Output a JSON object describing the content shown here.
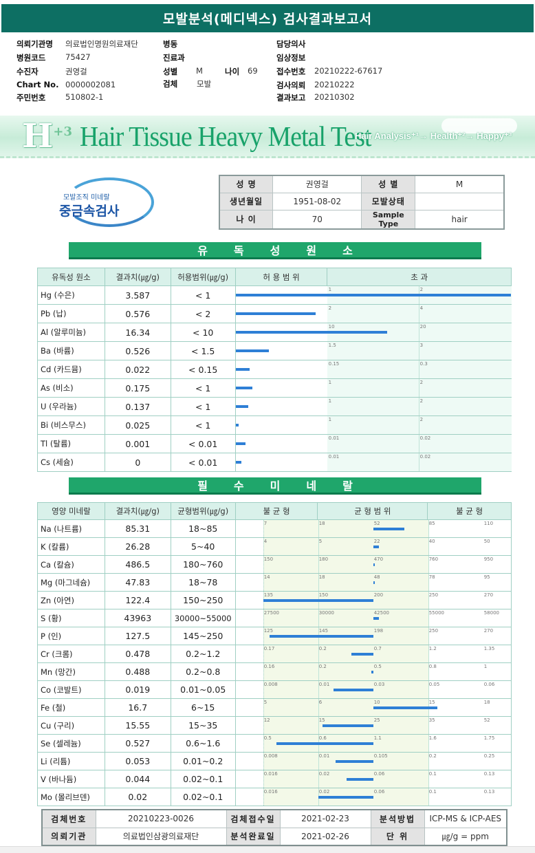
{
  "title": "모발분석(메디넥스) 검사결과보고서",
  "info": [
    {
      "label": "의뢰기관명",
      "value": "의료법인명원의료재단"
    },
    {
      "label": "병원코드",
      "value": "75427"
    },
    {
      "label": "수진자",
      "value": "권영걸"
    },
    {
      "label": "Chart No.",
      "value": "0000002081"
    },
    {
      "label": "주민번호",
      "value": "510802-1"
    },
    {
      "label": "병동",
      "value": ""
    },
    {
      "label": "진료과",
      "value": ""
    },
    {
      "label": "성별",
      "value": "M"
    },
    {
      "label": "나이",
      "value": "69"
    },
    {
      "label": "검체",
      "value": "모발"
    },
    {
      "label": "담당의사",
      "value": ""
    },
    {
      "label": "임상정보",
      "value": ""
    },
    {
      "label": "접수번호",
      "value": "20210222-67617"
    },
    {
      "label": "검사의뢰",
      "value": "20210222"
    },
    {
      "label": "결과보고",
      "value": "20210302"
    }
  ],
  "banner": {
    "logo": "H",
    "logo_sup": "+3",
    "title": "Hair Tissue Heavy Metal Test",
    "tagline": "Hair Analysis⁺¹→ Health⁺²→ Happy⁺³"
  },
  "logo": {
    "sub": "모발조직 미네랄",
    "main": "중금속검사"
  },
  "patient": {
    "labels": [
      "성  명",
      "성  별",
      "생년월일",
      "모발상태",
      "나  이",
      "Sample Type"
    ],
    "values": [
      "권영걸",
      "M",
      "1951-08-02",
      "",
      "70",
      "hair"
    ]
  },
  "toxic": {
    "section_title": "유독성원소",
    "headers": [
      "유독성 원소",
      "결과치(㎍/g)",
      "허용범위(㎍/g)",
      "허 용 범 위",
      "초 과"
    ],
    "rows": [
      {
        "name": "Hg (수은)",
        "result": "3.587",
        "range": "< 1",
        "t1": "1",
        "t2": "2",
        "fill": 1.0
      },
      {
        "name": "Pb (납)",
        "result": "0.576",
        "range": "< 2",
        "t1": "2",
        "t2": "4",
        "fill": 0.29
      },
      {
        "name": "Al (알루미늄)",
        "result": "16.34",
        "range": "< 10",
        "t1": "10",
        "t2": "20",
        "fill": 0.55
      },
      {
        "name": "Ba (바륨)",
        "result": "0.526",
        "range": "< 1.5",
        "t1": "1.5",
        "t2": "3",
        "fill": 0.12
      },
      {
        "name": "Cd (카드뮴)",
        "result": "0.022",
        "range": "< 0.15",
        "t1": "0.15",
        "t2": "0.3",
        "fill": 0.05
      },
      {
        "name": "As (비소)",
        "result": "0.175",
        "range": "< 1",
        "t1": "1",
        "t2": "2",
        "fill": 0.06
      },
      {
        "name": "U (우라늄)",
        "result": "0.137",
        "range": "< 1",
        "t1": "1",
        "t2": "2",
        "fill": 0.045
      },
      {
        "name": "Bi (비스무스)",
        "result": "0.025",
        "range": "< 1",
        "t1": "1",
        "t2": "2",
        "fill": 0.01
      },
      {
        "name": "Tl (탈륨)",
        "result": "0.001",
        "range": "< 0.01",
        "t1": "0.01",
        "t2": "0.02",
        "fill": 0.035
      },
      {
        "name": "Cs (세슘)",
        "result": "0",
        "range": "< 0.01",
        "t1": "0.01",
        "t2": "0.02",
        "fill": 0.02
      }
    ]
  },
  "minerals": {
    "section_title": "필수미네랄",
    "headers": [
      "영양 미네랄",
      "결과치(㎍/g)",
      "균형범위(㎍/g)",
      "불 균 형",
      "균 형 범 위",
      "불 균 형"
    ],
    "rows": [
      {
        "name": "Na (나트륨)",
        "result": "85.31",
        "range": "18~85",
        "ticks": [
          "7",
          "18",
          "52",
          "85",
          "110"
        ],
        "center": 0.5,
        "bar": 0.64
      },
      {
        "name": "K (칼륨)",
        "result": "26.28",
        "range": "5~40",
        "ticks": [
          "4",
          "5",
          "22",
          "40",
          "50"
        ],
        "center": 0.5,
        "bar": 0.525
      },
      {
        "name": "Ca (칼슘)",
        "result": "486.5",
        "range": "180~760",
        "ticks": [
          "150",
          "180",
          "470",
          "760",
          "950"
        ],
        "center": 0.5,
        "bar": 0.505
      },
      {
        "name": "Mg (마그네슘)",
        "result": "47.83",
        "range": "18~78",
        "ticks": [
          "14",
          "18",
          "48",
          "78",
          "95"
        ],
        "center": 0.5,
        "bar": 0.5
      },
      {
        "name": "Zn (아연)",
        "result": "122.4",
        "range": "150~250",
        "ticks": [
          "135",
          "150",
          "200",
          "250",
          "270"
        ],
        "center": 0.5,
        "bar": 0.0
      },
      {
        "name": "S (황)",
        "result": "43963",
        "range": "30000~55000",
        "ticks": [
          "27500",
          "30000",
          "42500",
          "55000",
          "58000"
        ],
        "center": 0.5,
        "bar": 0.525
      },
      {
        "name": "P (인)",
        "result": "127.5",
        "range": "145~250",
        "ticks": [
          "125",
          "145",
          "198",
          "250",
          "270"
        ],
        "center": 0.5,
        "bar": 0.03
      },
      {
        "name": "Cr (크롬)",
        "result": "0.478",
        "range": "0.2~1.2",
        "ticks": [
          "0.17",
          "0.2",
          "0.7",
          "1.2",
          "1.35"
        ],
        "center": 0.5,
        "bar": 0.4
      },
      {
        "name": "Mn (망간)",
        "result": "0.488",
        "range": "0.2~0.8",
        "ticks": [
          "0.16",
          "0.2",
          "0.5",
          "0.8",
          "1"
        ],
        "center": 0.5,
        "bar": 0.49
      },
      {
        "name": "Co (코발트)",
        "result": "0.019",
        "range": "0.01~0.05",
        "ticks": [
          "0.008",
          "0.01",
          "0.03",
          "0.05",
          "0.06"
        ],
        "center": 0.5,
        "bar": 0.32
      },
      {
        "name": "Fe (철)",
        "result": "16.7",
        "range": "6~15",
        "ticks": [
          "5",
          "6",
          "10",
          "15",
          "18"
        ],
        "center": 0.5,
        "bar": 0.79
      },
      {
        "name": "Cu (구리)",
        "result": "15.55",
        "range": "15~35",
        "ticks": [
          "12",
          "15",
          "25",
          "35",
          "52"
        ],
        "center": 0.5,
        "bar": 0.27
      },
      {
        "name": "Se (셀레늄)",
        "result": "0.527",
        "range": "0.6~1.6",
        "ticks": [
          "0.5",
          "0.6",
          "1.1",
          "1.6",
          "1.75"
        ],
        "center": 0.5,
        "bar": 0.06
      },
      {
        "name": "Li (리튬)",
        "result": "0.053",
        "range": "0.01~0.2",
        "ticks": [
          "0.008",
          "0.01",
          "0.105",
          "0.2",
          "0.25"
        ],
        "center": 0.5,
        "bar": 0.33
      },
      {
        "name": "V (바나듐)",
        "result": "0.044",
        "range": "0.02~0.1",
        "ticks": [
          "0.016",
          "0.02",
          "0.06",
          "0.1",
          "0.13"
        ],
        "center": 0.5,
        "bar": 0.38
      },
      {
        "name": "Mo (몰리브덴)",
        "result": "0.02",
        "range": "0.02~0.1",
        "ticks": [
          "0.016",
          "0.02",
          "0.06",
          "0.1",
          "0.13"
        ],
        "center": 0.5,
        "bar": 0.25
      }
    ]
  },
  "footer": {
    "labels": [
      "검체번호",
      "검체접수일",
      "분석방법",
      "의뢰기관",
      "분석완료일",
      "단  위"
    ],
    "values": [
      "20210223-0026",
      "2021-02-23",
      "ICP-MS & ICP-AES",
      "의료법인삼광의료재단",
      "2021-02-26",
      "㎍/g = ppm"
    ]
  },
  "colors": {
    "header": "#0d6f63",
    "section": "#1fa66b",
    "bar": "#2e7fd6",
    "balanceZone": "#f3f9e8"
  }
}
